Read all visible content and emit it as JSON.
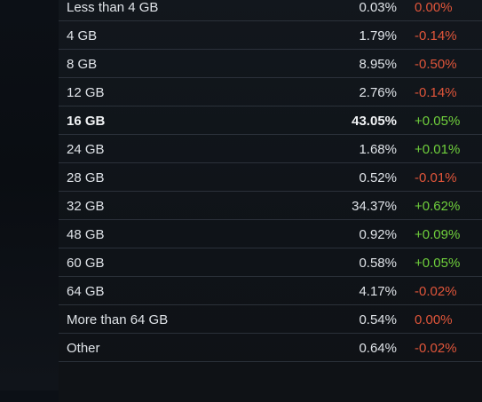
{
  "colors": {
    "positive": "#6fcf3c",
    "negative": "#e0553a",
    "text": "#dfe3e8"
  },
  "rows": [
    {
      "label": "Less than 4 GB",
      "percent": "0.03%",
      "change": "0.00%",
      "trend": "zero"
    },
    {
      "label": "4 GB",
      "percent": "1.79%",
      "change": "-0.14%",
      "trend": "neg"
    },
    {
      "label": "8 GB",
      "percent": "8.95%",
      "change": "-0.50%",
      "trend": "neg"
    },
    {
      "label": "12 GB",
      "percent": "2.76%",
      "change": "-0.14%",
      "trend": "neg"
    },
    {
      "label": "16 GB",
      "percent": "43.05%",
      "change": "+0.05%",
      "trend": "pos",
      "highlight": true
    },
    {
      "label": "24 GB",
      "percent": "1.68%",
      "change": "+0.01%",
      "trend": "pos"
    },
    {
      "label": "28 GB",
      "percent": "0.52%",
      "change": "-0.01%",
      "trend": "neg"
    },
    {
      "label": "32 GB",
      "percent": "34.37%",
      "change": "+0.62%",
      "trend": "pos"
    },
    {
      "label": "48 GB",
      "percent": "0.92%",
      "change": "+0.09%",
      "trend": "pos"
    },
    {
      "label": "60 GB",
      "percent": "0.58%",
      "change": "+0.05%",
      "trend": "pos"
    },
    {
      "label": "64 GB",
      "percent": "4.17%",
      "change": "-0.02%",
      "trend": "neg"
    },
    {
      "label": "More than 64 GB",
      "percent": "0.54%",
      "change": "0.00%",
      "trend": "zero"
    },
    {
      "label": "Other",
      "percent": "0.64%",
      "change": "-0.02%",
      "trend": "neg"
    }
  ]
}
